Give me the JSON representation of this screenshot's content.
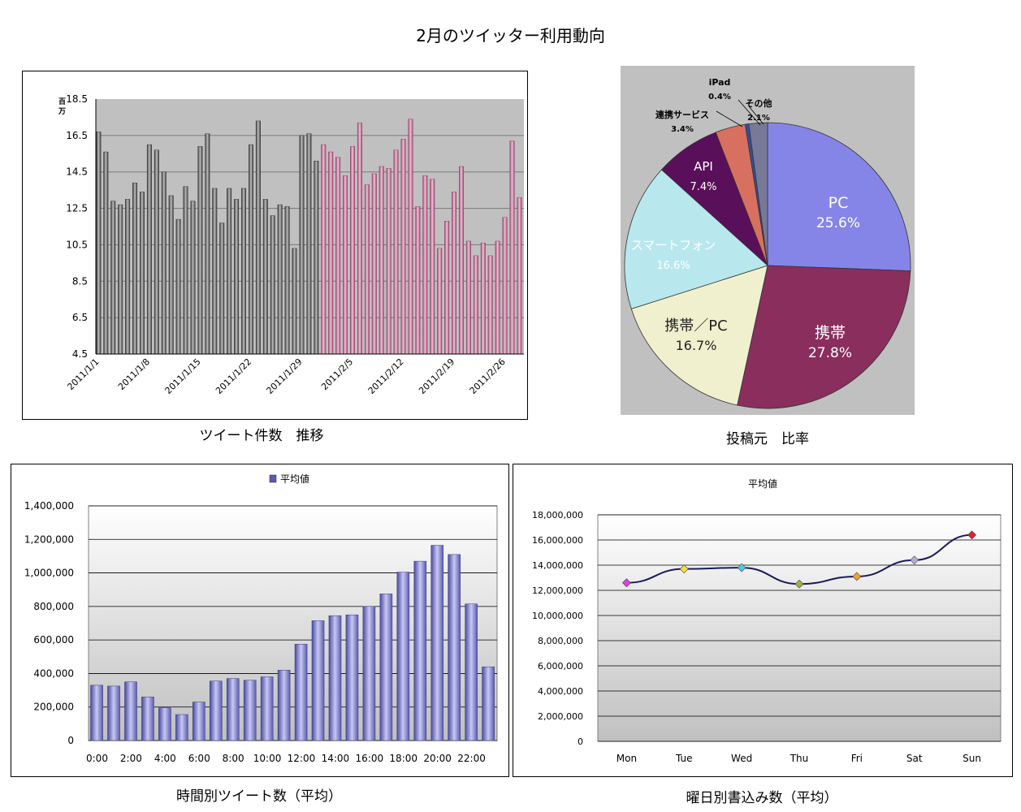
{
  "page": {
    "title": "2月のツイッター利用動向",
    "caption_daily": "ツイート件数　推移",
    "caption_pie": "投稿元　比率",
    "caption_hourly": "時間別ツイート数（平均）",
    "caption_weekday": "曜日別書込み数（平均）"
  },
  "colors": {
    "jan_bar": "#6e6e6e",
    "feb_bar": "#c27a9c",
    "plot_bg": "#c0c0c0",
    "hour_bar": "#7f7fcf",
    "line": "#1a1a5a"
  },
  "chart_data": [
    {
      "type": "bar",
      "unit": "百万",
      "ylim": [
        4.5,
        18.5
      ],
      "yticks": [
        "18.5",
        "16.5",
        "14.5",
        "12.5",
        "10.5",
        "8.5",
        "6.5",
        "4.5"
      ],
      "xticks": [
        "2011/1/1",
        "2011/1/8",
        "2011/1/15",
        "2011/1/22",
        "2011/1/29",
        "2011/2/5",
        "2011/2/12",
        "2011/2/19",
        "2011/2/26"
      ],
      "series": [
        {
          "values": [
            16.7,
            15.6,
            12.9,
            12.7,
            13.0,
            13.9,
            13.4,
            16.0,
            15.7,
            14.5,
            13.2,
            11.9,
            13.7,
            12.9,
            15.9,
            16.6,
            13.6,
            11.7,
            13.6,
            13.0,
            13.6,
            16.0,
            17.3,
            13.0,
            12.1,
            12.7,
            12.6,
            10.3,
            16.5,
            16.6,
            15.1
          ]
        },
        {
          "values": [
            16.0,
            15.6,
            15.3,
            14.3,
            15.9,
            17.2,
            13.8,
            14.4,
            14.8,
            14.7,
            15.7,
            16.3,
            17.4,
            12.6,
            14.3,
            14.1,
            10.3,
            11.8,
            13.4,
            14.8,
            10.7,
            9.9,
            10.6,
            9.9,
            10.7,
            12.0,
            16.2,
            13.1
          ]
        }
      ]
    },
    {
      "type": "pie",
      "slices": [
        {
          "label": "PC",
          "pct": "25.6%",
          "value": 25.6,
          "color": "#8585e8"
        },
        {
          "label": "携帯",
          "pct": "27.8%",
          "value": 27.8,
          "color": "#8a2e5e"
        },
        {
          "label": "携帯／PC",
          "pct": "16.7%",
          "value": 16.7,
          "color": "#f0f0cf"
        },
        {
          "label": "スマートフォン",
          "pct": "16.6%",
          "value": 16.6,
          "color": "#b8e8ee"
        },
        {
          "label": "API",
          "pct": "7.4%",
          "value": 7.4,
          "color": "#5a0f5a"
        },
        {
          "label": "連携サービス",
          "pct": "3.4%",
          "value": 3.4,
          "color": "#d87060"
        },
        {
          "label": "iPad",
          "pct": "0.4%",
          "value": 0.4,
          "color": "#3050a0"
        },
        {
          "label": "その他",
          "pct": "2.1%",
          "value": 2.1,
          "color": "#787898"
        }
      ]
    },
    {
      "type": "bar",
      "legend": "平均値",
      "ylim": [
        0,
        1400000
      ],
      "yticks": [
        "1,400,000",
        "1,200,000",
        "1,000,000",
        "800,000",
        "600,000",
        "400,000",
        "200,000",
        "0"
      ],
      "x": [
        "0:00",
        "1:00",
        "2:00",
        "3:00",
        "4:00",
        "5:00",
        "6:00",
        "7:00",
        "8:00",
        "9:00",
        "10:00",
        "11:00",
        "12:00",
        "13:00",
        "14:00",
        "15:00",
        "16:00",
        "17:00",
        "18:00",
        "19:00",
        "20:00",
        "21:00",
        "22:00",
        "23:00"
      ],
      "xticks": [
        "0:00",
        "2:00",
        "4:00",
        "6:00",
        "8:00",
        "10:00",
        "12:00",
        "14:00",
        "16:00",
        "18:00",
        "20:00",
        "22:00"
      ],
      "series": [
        {
          "name": "平均値",
          "values": [
            330000,
            325000,
            350000,
            260000,
            195000,
            155000,
            230000,
            355000,
            370000,
            360000,
            380000,
            420000,
            575000,
            715000,
            745000,
            750000,
            800000,
            875000,
            1005000,
            1070000,
            1165000,
            1110000,
            815000,
            440000
          ]
        }
      ]
    },
    {
      "type": "line",
      "title": "平均値",
      "ylim": [
        0,
        18000000
      ],
      "yticks": [
        "18,000,000",
        "16,000,000",
        "14,000,000",
        "12,000,000",
        "10,000,000",
        "8,000,000",
        "6,000,000",
        "4,000,000",
        "2,000,000",
        "0"
      ],
      "categories": [
        "Mon",
        "Tue",
        "Wed",
        "Thu",
        "Fri",
        "Sat",
        "Sun"
      ],
      "values": [
        12600000,
        13700000,
        13800000,
        12500000,
        13100000,
        14400000,
        16400000
      ],
      "marker_colors": [
        "#e040e0",
        "#f0e040",
        "#40d0e0",
        "#a0b040",
        "#f0a030",
        "#b0b0d0",
        "#e02030"
      ]
    }
  ]
}
